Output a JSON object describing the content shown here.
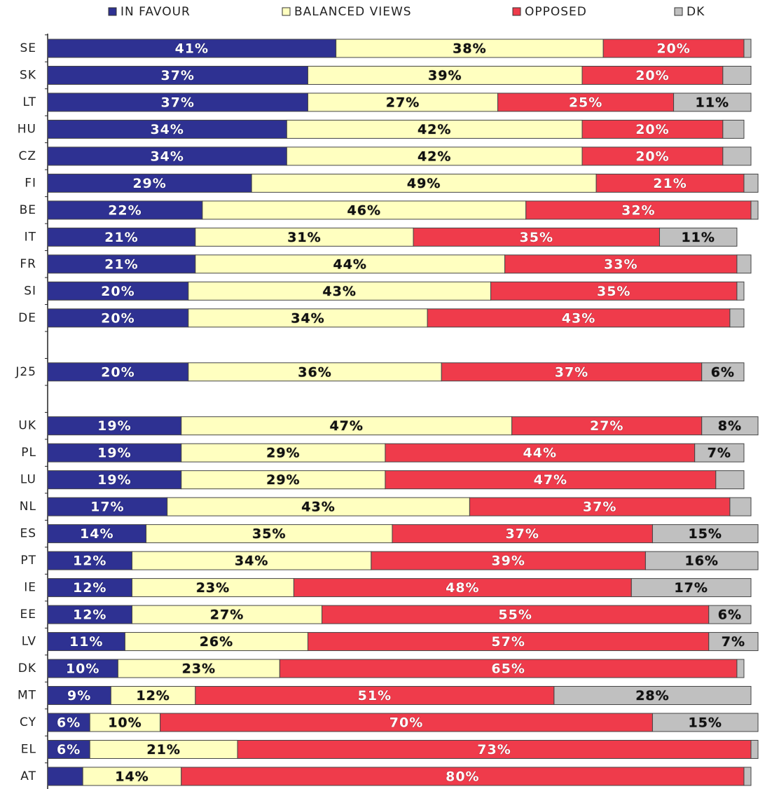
{
  "chart_data": {
    "type": "stacked-bar",
    "orientation": "horizontal",
    "categories": [
      "SE",
      "SK",
      "LT",
      "HU",
      "CZ",
      "FI",
      "BE",
      "IT",
      "FR",
      "SI",
      "DE",
      null,
      "J25",
      null,
      "UK",
      "PL",
      "LU",
      "NL",
      "ES",
      "PT",
      "IE",
      "EE",
      "LV",
      "DK",
      "MT",
      "CY",
      "EL",
      "AT"
    ],
    "xlim": [
      0,
      100
    ],
    "series": [
      {
        "name": "IN FAVOUR",
        "color": "#2e3192",
        "text_color": "#ffffff",
        "values": [
          41,
          37,
          37,
          34,
          34,
          29,
          22,
          21,
          21,
          20,
          20,
          null,
          20,
          null,
          19,
          19,
          19,
          17,
          14,
          12,
          12,
          12,
          11,
          10,
          9,
          6,
          6,
          5
        ],
        "value_labels": [
          "41%",
          "37%",
          "37%",
          "34%",
          "34%",
          "29%",
          "22%",
          "21%",
          "21%",
          "20%",
          "20%",
          null,
          "20%",
          null,
          "19%",
          "19%",
          "19%",
          "17%",
          "14%",
          "12%",
          "12%",
          "12%",
          "11%",
          "10%",
          "9%",
          "6%",
          "6%",
          null
        ]
      },
      {
        "name": "BALANCED VIEWS",
        "color": "#ffffc0",
        "text_color": "#111111",
        "values": [
          38,
          39,
          27,
          42,
          42,
          49,
          46,
          31,
          44,
          43,
          34,
          null,
          36,
          null,
          47,
          29,
          29,
          43,
          35,
          34,
          23,
          27,
          26,
          23,
          12,
          10,
          21,
          14
        ],
        "value_labels": [
          "38%",
          "39%",
          "27%",
          "42%",
          "42%",
          "49%",
          "46%",
          "31%",
          "44%",
          "43%",
          "34%",
          null,
          "36%",
          null,
          "47%",
          "29%",
          "29%",
          "43%",
          "35%",
          "34%",
          "23%",
          "27%",
          "26%",
          "23%",
          "12%",
          "10%",
          "21%",
          "14%"
        ]
      },
      {
        "name": "OPPOSED",
        "color": "#ef3b4b",
        "text_color": "#ffffff",
        "values": [
          20,
          20,
          25,
          20,
          20,
          21,
          32,
          35,
          33,
          35,
          43,
          null,
          37,
          null,
          27,
          44,
          47,
          37,
          37,
          39,
          48,
          55,
          57,
          65,
          51,
          70,
          73,
          80
        ],
        "value_labels": [
          "20%",
          "20%",
          "25%",
          "20%",
          "20%",
          "21%",
          "32%",
          "35%",
          "33%",
          "35%",
          "43%",
          null,
          "37%",
          null,
          "27%",
          "44%",
          "47%",
          "37%",
          "37%",
          "39%",
          "48%",
          "55%",
          "57%",
          "65%",
          "51%",
          "70%",
          "73%",
          "80%"
        ]
      },
      {
        "name": "DK",
        "color": "#c0c0c0",
        "text_color": "#111111",
        "values": [
          1,
          4,
          11,
          3,
          4,
          2,
          1,
          11,
          2,
          1,
          2,
          null,
          6,
          null,
          8,
          7,
          4,
          3,
          15,
          16,
          17,
          6,
          7,
          1,
          28,
          15,
          1,
          1
        ],
        "value_labels": [
          null,
          null,
          "11%",
          null,
          null,
          null,
          null,
          "11%",
          null,
          null,
          null,
          null,
          "6%",
          null,
          "8%",
          "7%",
          null,
          null,
          "15%",
          "16%",
          "17%",
          "6%",
          "7%",
          null,
          "28%",
          "15%",
          null,
          null
        ]
      }
    ]
  }
}
